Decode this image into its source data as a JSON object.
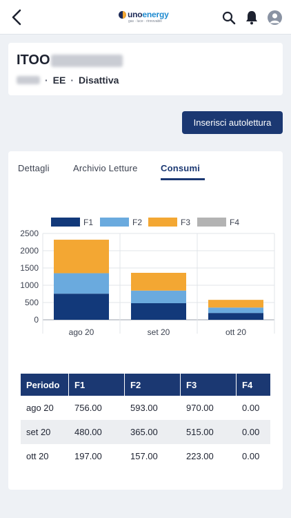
{
  "header": {
    "logo_word_1": "uno",
    "logo_word_2": "energy",
    "logo_tagline": "gas · luce · rinnovabili"
  },
  "supply": {
    "code_prefix": "ITOO",
    "type": "EE",
    "status": "Disattiva"
  },
  "actions": {
    "autolettura_label": "Inserisci autolettura"
  },
  "tabs": [
    {
      "label": "Dettagli"
    },
    {
      "label": "Archivio Letture"
    },
    {
      "label": "Consumi"
    }
  ],
  "colors": {
    "primary": "#1b3872",
    "F1": "#12397a",
    "F2": "#6aaade",
    "F3": "#f3a733",
    "F4": "#b3b3b3"
  },
  "chart_data": {
    "type": "bar",
    "stacked": true,
    "categories": [
      "ago 20",
      "set 20",
      "ott 20"
    ],
    "series": [
      {
        "name": "F1",
        "values": [
          756,
          480,
          197
        ]
      },
      {
        "name": "F2",
        "values": [
          593,
          365,
          157
        ]
      },
      {
        "name": "F3",
        "values": [
          970,
          515,
          223
        ]
      },
      {
        "name": "F4",
        "values": [
          0,
          0,
          0
        ]
      }
    ],
    "yticks": [
      0,
      500,
      1000,
      1500,
      2000,
      2500
    ],
    "ylim": [
      0,
      2500
    ],
    "grid": true,
    "legend": "top"
  },
  "table": {
    "headers": [
      "Periodo",
      "F1",
      "F2",
      "F3",
      "F4"
    ],
    "rows": [
      [
        "ago 20",
        "756.00",
        "593.00",
        "970.00",
        "0.00"
      ],
      [
        "set 20",
        "480.00",
        "365.00",
        "515.00",
        "0.00"
      ],
      [
        "ott 20",
        "197.00",
        "157.00",
        "223.00",
        "0.00"
      ]
    ]
  }
}
